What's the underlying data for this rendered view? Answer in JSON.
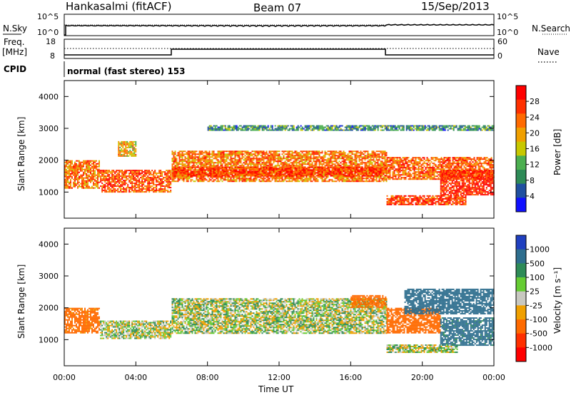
{
  "header": {
    "station": "Hankasalmi (fitACF)",
    "beam": "Beam 07",
    "date": "15/Sep/2013"
  },
  "noise_panel": {
    "left_label": "N.Sky",
    "right_label": "N.Search",
    "ticks": [
      "10^5",
      "10^0"
    ]
  },
  "freq_panel": {
    "left_label_1": "Freq.",
    "left_label_2": "[MHz]",
    "right_label": "Nave",
    "left_ticks": [
      "18",
      "8"
    ],
    "right_ticks": [
      "60",
      "0"
    ]
  },
  "cpid": {
    "label": "CPID",
    "mode": "normal (fast stereo) 153"
  },
  "power_panel": {
    "ylabel": "Slant Range [km]",
    "yticks": [
      "4000",
      "3000",
      "2000",
      "1000"
    ],
    "colorbar_label": "Power [dB]",
    "colorbar_ticks": [
      "28",
      "24",
      "20",
      "16",
      "12",
      "8",
      "4"
    ],
    "colorbar_colors": [
      "#ff0000",
      "#ff3000",
      "#ff6a00",
      "#f0a000",
      "#c8c800",
      "#4caf50",
      "#2e8b57",
      "#2050a0",
      "#1010ff"
    ]
  },
  "velocity_panel": {
    "ylabel": "Slant Range [km]",
    "yticks": [
      "4000",
      "3000",
      "2000",
      "1000"
    ],
    "colorbar_label": "Velocity [m s⁻¹]",
    "colorbar_ticks": [
      "1000",
      "500",
      "100",
      "25",
      "-25",
      "-100",
      "-500",
      "-1000"
    ],
    "colorbar_colors": [
      "#2040c0",
      "#2e6e8e",
      "#2e8b57",
      "#66cc33",
      "#c8c8c0",
      "#f0a000",
      "#ff6a00",
      "#ff3000",
      "#ff0000"
    ]
  },
  "xaxis": {
    "label": "Time UT",
    "ticks": [
      "00:00",
      "04:00",
      "08:00",
      "12:00",
      "16:00",
      "20:00",
      "00:00"
    ]
  },
  "chart_data": {
    "type": "heatmap",
    "title": "Hankasalmi (fitACF) Beam 07 15/Sep/2013",
    "xlabel": "Time UT",
    "ylabel": "Slant Range [km]",
    "xlim_hours": [
      0,
      24
    ],
    "ylim_km": [
      180,
      4500
    ],
    "panels": [
      {
        "name": "Power",
        "units": "dB",
        "colorbar_range": [
          0,
          30
        ],
        "regions": [
          {
            "t0": 0.0,
            "t1": 2.0,
            "r0": 1100,
            "r1": 2000,
            "value": 22
          },
          {
            "t0": 2.0,
            "t1": 6.0,
            "r0": 1000,
            "r1": 1700,
            "value": 24
          },
          {
            "t0": 3.0,
            "t1": 4.0,
            "r0": 2100,
            "r1": 2600,
            "value": 18
          },
          {
            "t0": 6.0,
            "t1": 18.0,
            "r0": 1300,
            "r1": 2300,
            "value": 22
          },
          {
            "t0": 6.0,
            "t1": 18.0,
            "r0": 1500,
            "r1": 1800,
            "value": 26
          },
          {
            "t0": 18.0,
            "t1": 24.0,
            "r0": 1400,
            "r1": 2100,
            "value": 24
          },
          {
            "t0": 18.0,
            "t1": 22.5,
            "r0": 600,
            "r1": 900,
            "value": 26
          },
          {
            "t0": 21.0,
            "t1": 24.0,
            "r0": 900,
            "r1": 1700,
            "value": 28
          },
          {
            "t0": 8.0,
            "t1": 24.0,
            "r0": 2900,
            "r1": 3100,
            "value": 8
          }
        ]
      },
      {
        "name": "Velocity",
        "units": "m s-1",
        "colorbar_range": [
          -1000,
          1000
        ],
        "regions": [
          {
            "t0": 0.0,
            "t1": 2.0,
            "r0": 1200,
            "r1": 2000,
            "value": -150
          },
          {
            "t0": 2.0,
            "t1": 6.0,
            "r0": 1000,
            "r1": 1600,
            "value": 0
          },
          {
            "t0": 6.0,
            "t1": 18.0,
            "r0": 1200,
            "r1": 2300,
            "value": 0
          },
          {
            "t0": 16.0,
            "t1": 18.0,
            "r0": 2000,
            "r1": 2400,
            "value": -150
          },
          {
            "t0": 18.0,
            "t1": 21.0,
            "r0": 1200,
            "r1": 2000,
            "value": -200
          },
          {
            "t0": 19.0,
            "t1": 24.0,
            "r0": 1800,
            "r1": 2600,
            "value": 200
          },
          {
            "t0": 21.0,
            "t1": 24.0,
            "r0": 800,
            "r1": 1700,
            "value": 150
          },
          {
            "t0": 18.0,
            "t1": 22.0,
            "r0": 600,
            "r1": 850,
            "value": 0
          }
        ]
      }
    ]
  }
}
